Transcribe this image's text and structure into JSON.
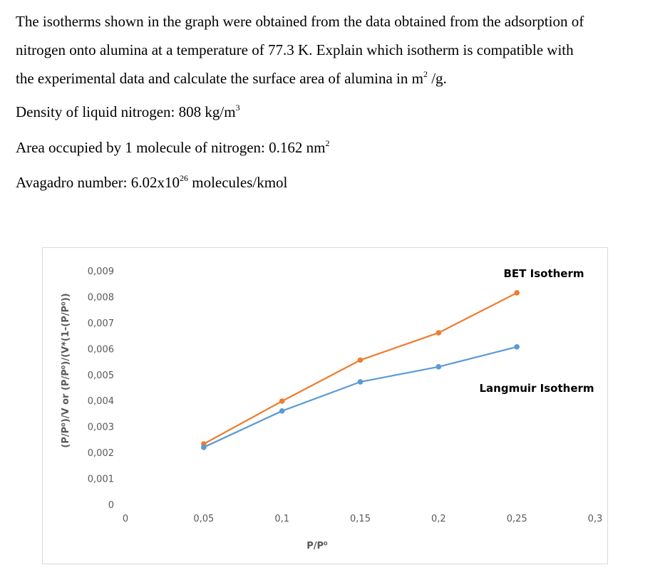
{
  "problem": {
    "line1": "The isotherms shown in the graph were obtained from the data obtained from the adsorption of",
    "line2": "nitrogen onto alumina at a temperature of 77.3 K. Explain which isotherm is compatible with",
    "line3_pre": "the experimental data and calculate the surface area of alumina in m",
    "line3_sup": "2",
    "line3_post": " /g.",
    "density_pre": "Density of liquid nitrogen: 808 kg/m",
    "density_sup": "3",
    "area_pre": "Area occupied by 1 molecule of nitrogen: 0.162 nm",
    "area_sup": "2",
    "avog_pre": "Avagadro number: 6.02x10",
    "avog_sup": "26",
    "avog_post": " molecules/kmol"
  },
  "chart_data": {
    "type": "line",
    "xlabel": "P/P⁰",
    "ylabel": "(P/P⁰)/V or (P/P⁰)/(V*(1-(P/P⁰))",
    "xlim": [
      0,
      0.3
    ],
    "ylim": [
      0,
      0.009
    ],
    "xticks": [
      0,
      0.05,
      0.1,
      0.15,
      0.2,
      0.25,
      0.3
    ],
    "xtick_labels": [
      "0",
      "0,05",
      "0,1",
      "0,15",
      "0,2",
      "0,25",
      "0,3"
    ],
    "yticks": [
      0,
      0.001,
      0.002,
      0.003,
      0.004,
      0.005,
      0.006,
      0.007,
      0.008,
      0.009
    ],
    "ytick_labels": [
      "0",
      "0,001",
      "0,002",
      "0,003",
      "0,004",
      "0,005",
      "0,006",
      "0,007",
      "0,008",
      "0,009"
    ],
    "grid": false,
    "x": [
      0.05,
      0.1,
      0.15,
      0.2,
      0.25
    ],
    "series": [
      {
        "name": "BET Isotherm",
        "color": "#ED7D31",
        "values": [
          0.00233,
          0.00398,
          0.00556,
          0.00661,
          0.00815
        ]
      },
      {
        "name": "Langmuir Isotherm",
        "color": "#5B9BD5",
        "values": [
          0.0022,
          0.0036,
          0.00472,
          0.0053,
          0.00607
        ]
      }
    ],
    "annotations": [
      "BET Isotherm",
      "Langmuir Isotherm"
    ]
  }
}
